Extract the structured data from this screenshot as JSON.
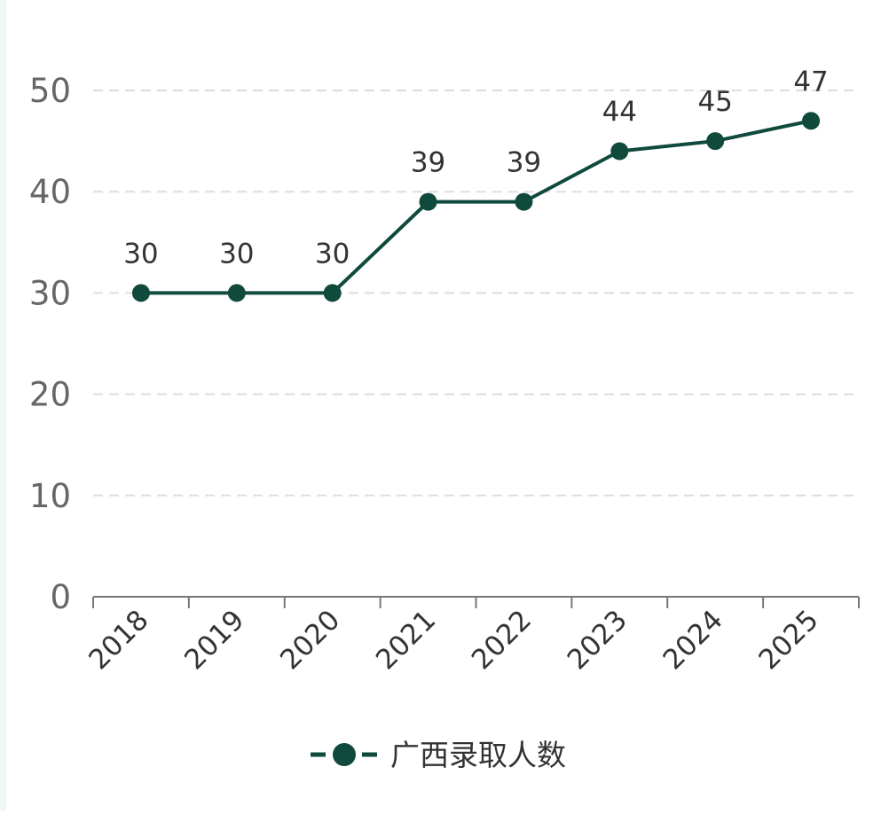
{
  "chart_data": {
    "type": "line",
    "title": "",
    "xlabel": "",
    "ylabel": "",
    "categories": [
      "2018",
      "2019",
      "2020",
      "2021",
      "2022",
      "2023",
      "2024",
      "2025"
    ],
    "series": [
      {
        "name": "广西录取人数",
        "values": [
          30,
          30,
          30,
          39,
          39,
          44,
          45,
          47
        ]
      }
    ],
    "ylim": [
      0,
      50
    ],
    "yticks": [
      "0",
      "10",
      "20",
      "30",
      "40",
      "50"
    ],
    "grid": true,
    "grid_style": "dashed",
    "data_labels": true,
    "legend_position": "bottom-center",
    "colors": {
      "series": "#0f4a3c",
      "grid": "#dddddd",
      "axis": "#777777",
      "tick_label": "#666666",
      "data_label": "#333333",
      "left_strip": "#eef8f5"
    }
  }
}
